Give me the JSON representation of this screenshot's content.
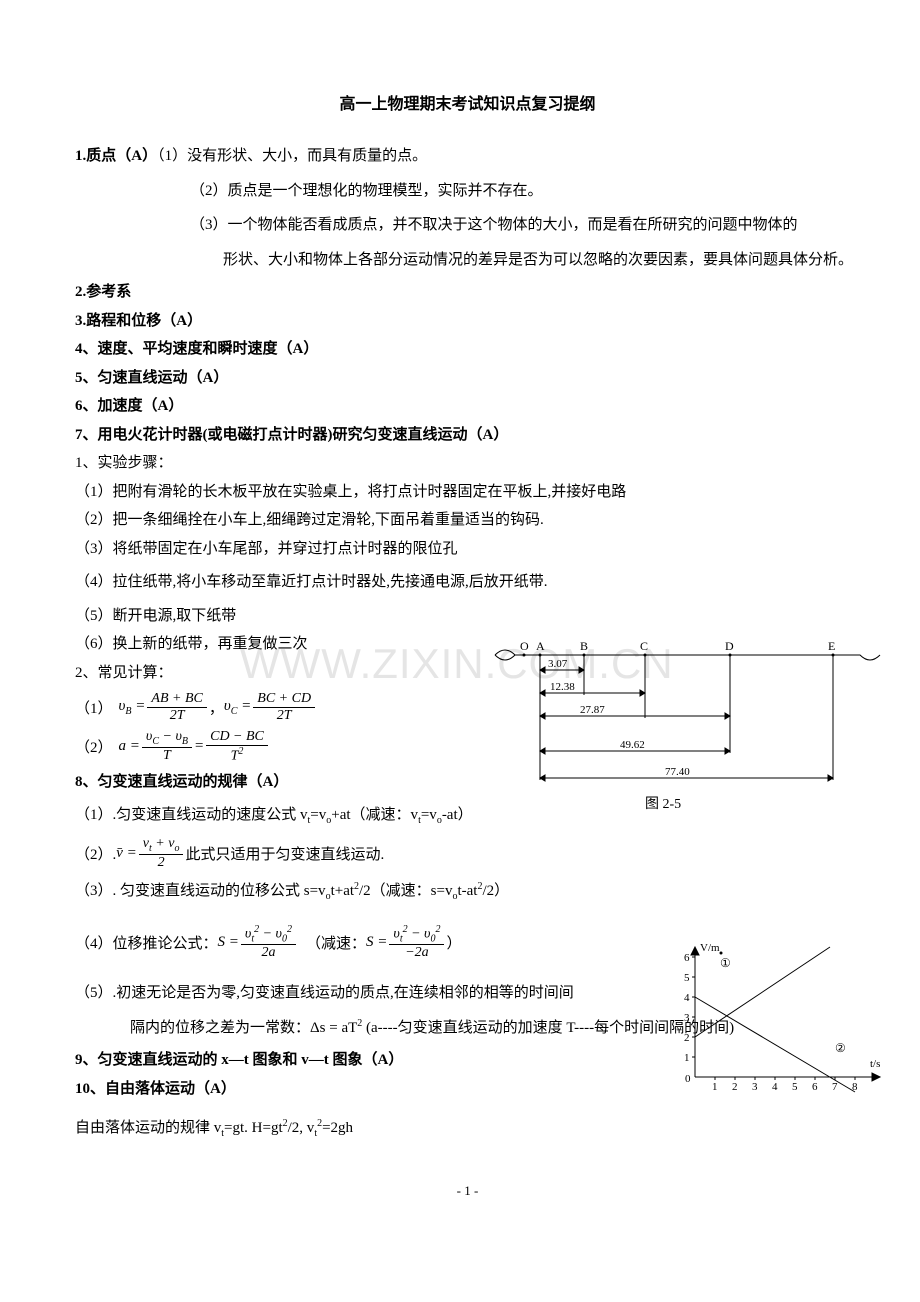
{
  "title": "高一上物理期末考试知识点复习提纲",
  "s1": {
    "head": "1.质点（A）",
    "p1": "（1）没有形状、大小，而具有质量的点。",
    "p2": "（2）质点是一个理想化的物理模型，实际并不存在。",
    "p3a": "（3）一个物体能否看成质点，并不取决于这个物体的大小，而是看在所研究的问题中物体的",
    "p3b": "形状、大小和物体上各部分运动情况的差异是否为可以忽略的次要因素，要具体问题具体分析。"
  },
  "s2": "2.参考系",
  "s3": "3.路程和位移（A）",
  "s4": "4、速度、平均速度和瞬时速度（A）",
  "s5": "5、匀速直线运动（A）",
  "s6": "6、加速度（A）",
  "s7": {
    "head": "7、用电火花计时器(或电磁打点计时器)研究匀变速直线运动（A）",
    "l1": "1、实验步骤：",
    "l2": "（1）把附有滑轮的长木板平放在实验桌上，将打点计时器固定在平板上,并接好电路",
    "l3": "（2）把一条细绳拴在小车上,细绳跨过定滑轮,下面吊着重量适当的钩码.",
    "l4": "（3）将纸带固定在小车尾部，并穿过打点计时器的限位孔",
    "l5": "（4）拉住纸带,将小车移动至靠近打点计时器处,先接通电源,后放开纸带.",
    "l6": "（5）断开电源,取下纸带",
    "l7": "（6）换上新的纸带，再重复做三次",
    "l8": "2、常见计算：",
    "f1_label": "（1）",
    "f2_label": "（2）"
  },
  "diagram1": {
    "labels": [
      "O",
      "A",
      "B",
      "C",
      "D",
      "E"
    ],
    "vals": [
      "3.07",
      "12.38",
      "27.87",
      "49.62",
      "77.40"
    ],
    "caption": "图 2-5",
    "line_color": "#000000",
    "text_fontsize": 12
  },
  "s8": {
    "head": "8、匀变速直线运动的规律（A）",
    "p1": "（1）.匀变速直线运动的速度公式 v",
    "p1b": "=v",
    "p1c": "+at（减速：v",
    "p1d": "=v",
    "p1e": "-at）",
    "p2a": "（2）.",
    "p2b": " 此式只适用于匀变速直线运动.",
    "p3": "（3）. 匀变速直线运动的位移公式 s=v",
    "p3b": "t+at",
    "p3c": "/2（减速：s=v",
    "p3d": "t-at",
    "p3e": "/2）",
    "p4a": "（4）位移推论公式：",
    "p4b": "（减速：",
    "p4c": "）",
    "p5a": "（5）.初速无论是否为零,匀变速直线运动的质点,在连续相邻的相等的时间间",
    "p5b": "隔内的位移之差为一常数：Δs = aT",
    "p5c": "     (a----匀变速直线运动的加速度   T----每个时间间隔的时间)"
  },
  "diagram2": {
    "ylabel": "V/m",
    "xlabel": "t/s",
    "yticks": [
      1,
      2,
      3,
      4,
      5,
      6
    ],
    "xticks": [
      1,
      2,
      3,
      4,
      5,
      6,
      7,
      8
    ],
    "line1_label": "①",
    "line2_label": "②",
    "axis_color": "#000000",
    "text_fontsize": 11
  },
  "s9": "9、匀变速直线运动的 x—t 图象和 v—t 图象（A）",
  "s10": {
    "head": "10、自由落体运动（A）",
    "p1a": "自由落体运动的规律 v",
    "p1b": "=gt.     H=gt",
    "p1c": "/2,    v",
    "p1d": "=2gh"
  },
  "footer": "- 1 -",
  "watermark": "WWW.ZIXIN.COM.CN"
}
